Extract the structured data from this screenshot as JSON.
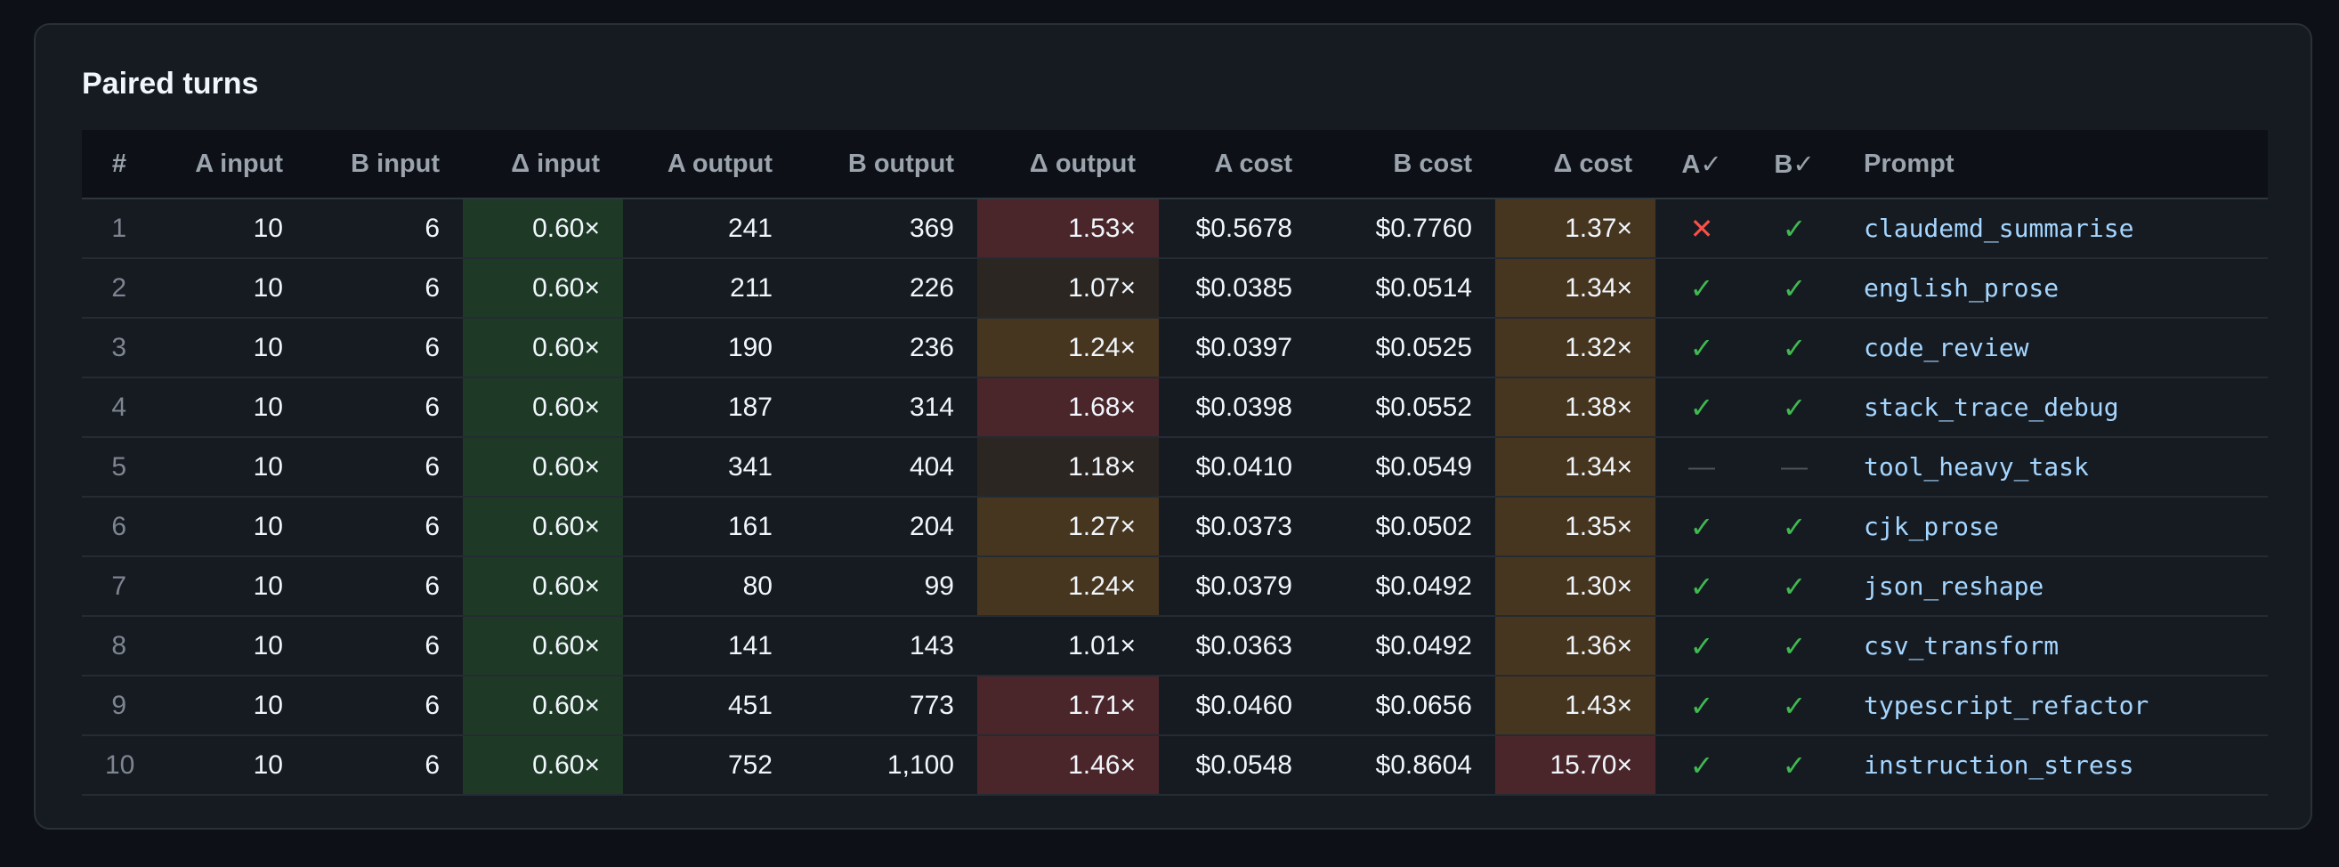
{
  "panel": {
    "title": "Paired turns"
  },
  "table": {
    "headers": {
      "num": "#",
      "a_input": "A input",
      "b_input": "B input",
      "d_input": "Δ input",
      "a_output": "A output",
      "b_output": "B output",
      "d_output": "Δ output",
      "a_cost": "A cost",
      "b_cost": "B cost",
      "d_cost": "Δ cost",
      "a_ok": "A✓",
      "b_ok": "B✓",
      "prompt": "Prompt"
    },
    "status_colors": {
      "good": "#1e3a26",
      "bad": "#4a262b",
      "warn": "#47361f",
      "mild": "#2b2621"
    },
    "rows": [
      {
        "num": "1",
        "a_input": "10",
        "b_input": "6",
        "d_input": "0.60×",
        "d_input_tone": "green",
        "a_output": "241",
        "b_output": "369",
        "d_output": "1.53×",
        "d_output_tone": "red",
        "a_cost": "$0.5678",
        "b_cost": "$0.7760",
        "d_cost": "1.37×",
        "d_cost_tone": "amber",
        "a_ok": "✕",
        "a_ok_kind": "cross",
        "b_ok": "✓",
        "b_ok_kind": "check",
        "prompt": "claudemd_summarise"
      },
      {
        "num": "2",
        "a_input": "10",
        "b_input": "6",
        "d_input": "0.60×",
        "d_input_tone": "green",
        "a_output": "211",
        "b_output": "226",
        "d_output": "1.07×",
        "d_output_tone": "dark",
        "a_cost": "$0.0385",
        "b_cost": "$0.0514",
        "d_cost": "1.34×",
        "d_cost_tone": "amber",
        "a_ok": "✓",
        "a_ok_kind": "check",
        "b_ok": "✓",
        "b_ok_kind": "check",
        "prompt": "english_prose"
      },
      {
        "num": "3",
        "a_input": "10",
        "b_input": "6",
        "d_input": "0.60×",
        "d_input_tone": "green",
        "a_output": "190",
        "b_output": "236",
        "d_output": "1.24×",
        "d_output_tone": "amber",
        "a_cost": "$0.0397",
        "b_cost": "$0.0525",
        "d_cost": "1.32×",
        "d_cost_tone": "amber",
        "a_ok": "✓",
        "a_ok_kind": "check",
        "b_ok": "✓",
        "b_ok_kind": "check",
        "prompt": "code_review"
      },
      {
        "num": "4",
        "a_input": "10",
        "b_input": "6",
        "d_input": "0.60×",
        "d_input_tone": "green",
        "a_output": "187",
        "b_output": "314",
        "d_output": "1.68×",
        "d_output_tone": "red",
        "a_cost": "$0.0398",
        "b_cost": "$0.0552",
        "d_cost": "1.38×",
        "d_cost_tone": "amber",
        "a_ok": "✓",
        "a_ok_kind": "check",
        "b_ok": "✓",
        "b_ok_kind": "check",
        "prompt": "stack_trace_debug"
      },
      {
        "num": "5",
        "a_input": "10",
        "b_input": "6",
        "d_input": "0.60×",
        "d_input_tone": "green",
        "a_output": "341",
        "b_output": "404",
        "d_output": "1.18×",
        "d_output_tone": "dark",
        "a_cost": "$0.0410",
        "b_cost": "$0.0549",
        "d_cost": "1.34×",
        "d_cost_tone": "amber",
        "a_ok": "—",
        "a_ok_kind": "dash",
        "b_ok": "—",
        "b_ok_kind": "dash",
        "prompt": "tool_heavy_task"
      },
      {
        "num": "6",
        "a_input": "10",
        "b_input": "6",
        "d_input": "0.60×",
        "d_input_tone": "green",
        "a_output": "161",
        "b_output": "204",
        "d_output": "1.27×",
        "d_output_tone": "amber",
        "a_cost": "$0.0373",
        "b_cost": "$0.0502",
        "d_cost": "1.35×",
        "d_cost_tone": "amber",
        "a_ok": "✓",
        "a_ok_kind": "check",
        "b_ok": "✓",
        "b_ok_kind": "check",
        "prompt": "cjk_prose"
      },
      {
        "num": "7",
        "a_input": "10",
        "b_input": "6",
        "d_input": "0.60×",
        "d_input_tone": "green",
        "a_output": "80",
        "b_output": "99",
        "d_output": "1.24×",
        "d_output_tone": "amber",
        "a_cost": "$0.0379",
        "b_cost": "$0.0492",
        "d_cost": "1.30×",
        "d_cost_tone": "amber",
        "a_ok": "✓",
        "a_ok_kind": "check",
        "b_ok": "✓",
        "b_ok_kind": "check",
        "prompt": "json_reshape"
      },
      {
        "num": "8",
        "a_input": "10",
        "b_input": "6",
        "d_input": "0.60×",
        "d_input_tone": "green",
        "a_output": "141",
        "b_output": "143",
        "d_output": "1.01×",
        "d_output_tone": "none",
        "a_cost": "$0.0363",
        "b_cost": "$0.0492",
        "d_cost": "1.36×",
        "d_cost_tone": "amber",
        "a_ok": "✓",
        "a_ok_kind": "check",
        "b_ok": "✓",
        "b_ok_kind": "check",
        "prompt": "csv_transform"
      },
      {
        "num": "9",
        "a_input": "10",
        "b_input": "6",
        "d_input": "0.60×",
        "d_input_tone": "green",
        "a_output": "451",
        "b_output": "773",
        "d_output": "1.71×",
        "d_output_tone": "red",
        "a_cost": "$0.0460",
        "b_cost": "$0.0656",
        "d_cost": "1.43×",
        "d_cost_tone": "amber",
        "a_ok": "✓",
        "a_ok_kind": "check",
        "b_ok": "✓",
        "b_ok_kind": "check",
        "prompt": "typescript_refactor"
      },
      {
        "num": "10",
        "a_input": "10",
        "b_input": "6",
        "d_input": "0.60×",
        "d_input_tone": "green",
        "a_output": "752",
        "b_output": "1,100",
        "d_output": "1.46×",
        "d_output_tone": "red",
        "a_cost": "$0.0548",
        "b_cost": "$0.8604",
        "d_cost": "15.70×",
        "d_cost_tone": "red",
        "a_ok": "✓",
        "a_ok_kind": "check",
        "b_ok": "✓",
        "b_ok_kind": "check",
        "prompt": "instruction_stress"
      }
    ]
  }
}
